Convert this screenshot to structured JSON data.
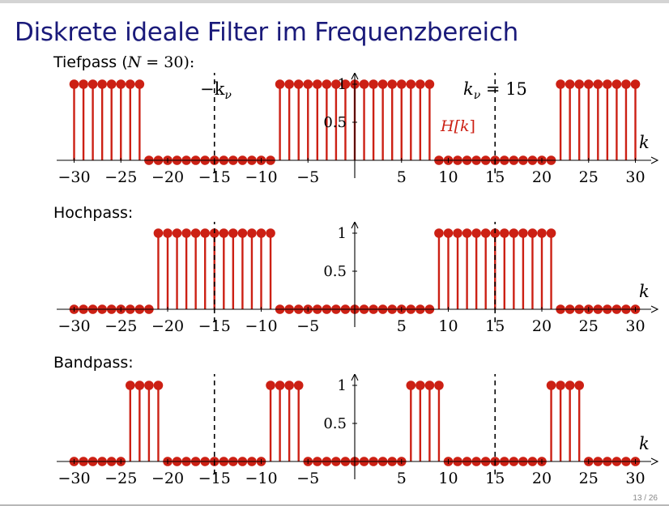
{
  "slide": {
    "title": "Diskrete ideale Filter im Frequenzbereich",
    "page": "13 / 26"
  },
  "annotations": {
    "minus_knu": "−k",
    "minus_knu_sub": "ν",
    "knu": "k",
    "knu_sub": "ν",
    "knu_eq": " = 15",
    "hk_h": "H[",
    "hk_k": "k",
    "hk_close": "]"
  },
  "colors": {
    "stem": "#cc2014",
    "title": "#1a1a7a"
  },
  "chart_data": [
    {
      "type": "stem",
      "label_prefix": "Tiefpass (",
      "label_var": "N",
      "label_suffix": " = 30):",
      "xlabel": "k",
      "ylabel": "",
      "series_label": "H[k]",
      "xlim": [
        -31,
        31
      ],
      "ylim": [
        0,
        1
      ],
      "xticks": [
        -30,
        -25,
        -20,
        -15,
        -10,
        -5,
        5,
        10,
        15,
        20,
        25,
        30
      ],
      "xtick_labels": [
        "−30",
        "−25",
        "−20",
        "−15",
        "−10",
        "−5",
        "5",
        "10",
        "15",
        "20",
        "25",
        "30"
      ],
      "yticks": [
        0.5,
        1
      ],
      "ytick_labels": [
        "0.5",
        "1"
      ],
      "dashed_x": [
        -15,
        15
      ],
      "x": [
        -30,
        -29,
        -28,
        -27,
        -26,
        -25,
        -24,
        -23,
        -22,
        -21,
        -20,
        -19,
        -18,
        -17,
        -16,
        -15,
        -14,
        -13,
        -12,
        -11,
        -10,
        -9,
        -8,
        -7,
        -6,
        -5,
        -4,
        -3,
        -2,
        -1,
        0,
        1,
        2,
        3,
        4,
        5,
        6,
        7,
        8,
        9,
        10,
        11,
        12,
        13,
        14,
        15,
        16,
        17,
        18,
        19,
        20,
        21,
        22,
        23,
        24,
        25,
        26,
        27,
        28,
        29,
        30
      ],
      "values": [
        1,
        1,
        1,
        1,
        1,
        1,
        1,
        1,
        0,
        0,
        0,
        0,
        0,
        0,
        0,
        0,
        0,
        0,
        0,
        0,
        0,
        0,
        1,
        1,
        1,
        1,
        1,
        1,
        1,
        1,
        1,
        1,
        1,
        1,
        1,
        1,
        1,
        1,
        1,
        0,
        0,
        0,
        0,
        0,
        0,
        0,
        0,
        0,
        0,
        0,
        0,
        0,
        1,
        1,
        1,
        1,
        1,
        1,
        1,
        1,
        1
      ]
    },
    {
      "type": "stem",
      "label": "Hochpass:",
      "xlabel": "k",
      "ylabel": "",
      "xlim": [
        -31,
        31
      ],
      "ylim": [
        0,
        1
      ],
      "xticks": [
        -30,
        -25,
        -20,
        -15,
        -10,
        -5,
        5,
        10,
        15,
        20,
        25,
        30
      ],
      "xtick_labels": [
        "−30",
        "−25",
        "−20",
        "−15",
        "−10",
        "−5",
        "5",
        "10",
        "15",
        "20",
        "25",
        "30"
      ],
      "yticks": [
        0.5,
        1
      ],
      "ytick_labels": [
        "0.5",
        "1"
      ],
      "dashed_x": [
        -15,
        15
      ],
      "x": [
        -30,
        -29,
        -28,
        -27,
        -26,
        -25,
        -24,
        -23,
        -22,
        -21,
        -20,
        -19,
        -18,
        -17,
        -16,
        -15,
        -14,
        -13,
        -12,
        -11,
        -10,
        -9,
        -8,
        -7,
        -6,
        -5,
        -4,
        -3,
        -2,
        -1,
        0,
        1,
        2,
        3,
        4,
        5,
        6,
        7,
        8,
        9,
        10,
        11,
        12,
        13,
        14,
        15,
        16,
        17,
        18,
        19,
        20,
        21,
        22,
        23,
        24,
        25,
        26,
        27,
        28,
        29,
        30
      ],
      "values": [
        0,
        0,
        0,
        0,
        0,
        0,
        0,
        0,
        0,
        1,
        1,
        1,
        1,
        1,
        1,
        1,
        1,
        1,
        1,
        1,
        1,
        1,
        0,
        0,
        0,
        0,
        0,
        0,
        0,
        0,
        0,
        0,
        0,
        0,
        0,
        0,
        0,
        0,
        0,
        1,
        1,
        1,
        1,
        1,
        1,
        1,
        1,
        1,
        1,
        1,
        1,
        1,
        0,
        0,
        0,
        0,
        0,
        0,
        0,
        0,
        0
      ]
    },
    {
      "type": "stem",
      "label": "Bandpass:",
      "xlabel": "k",
      "ylabel": "",
      "xlim": [
        -31,
        31
      ],
      "ylim": [
        0,
        1
      ],
      "xticks": [
        -30,
        -25,
        -20,
        -15,
        -10,
        -5,
        5,
        10,
        15,
        20,
        25,
        30
      ],
      "xtick_labels": [
        "−30",
        "−25",
        "−20",
        "−15",
        "−10",
        "−5",
        "5",
        "10",
        "15",
        "20",
        "25",
        "30"
      ],
      "yticks": [
        0.5,
        1
      ],
      "ytick_labels": [
        "0.5",
        "1"
      ],
      "dashed_x": [
        -15,
        15
      ],
      "x": [
        -30,
        -29,
        -28,
        -27,
        -26,
        -25,
        -24,
        -23,
        -22,
        -21,
        -20,
        -19,
        -18,
        -17,
        -16,
        -15,
        -14,
        -13,
        -12,
        -11,
        -10,
        -9,
        -8,
        -7,
        -6,
        -5,
        -4,
        -3,
        -2,
        -1,
        0,
        1,
        2,
        3,
        4,
        5,
        6,
        7,
        8,
        9,
        10,
        11,
        12,
        13,
        14,
        15,
        16,
        17,
        18,
        19,
        20,
        21,
        22,
        23,
        24,
        25,
        26,
        27,
        28,
        29,
        30
      ],
      "values": [
        0,
        0,
        0,
        0,
        0,
        0,
        1,
        1,
        1,
        1,
        0,
        0,
        0,
        0,
        0,
        0,
        0,
        0,
        0,
        0,
        0,
        1,
        1,
        1,
        1,
        0,
        0,
        0,
        0,
        0,
        0,
        0,
        0,
        0,
        0,
        0,
        1,
        1,
        1,
        1,
        0,
        0,
        0,
        0,
        0,
        0,
        0,
        0,
        0,
        0,
        0,
        1,
        1,
        1,
        1,
        0,
        0,
        0,
        0,
        0,
        0
      ]
    }
  ]
}
